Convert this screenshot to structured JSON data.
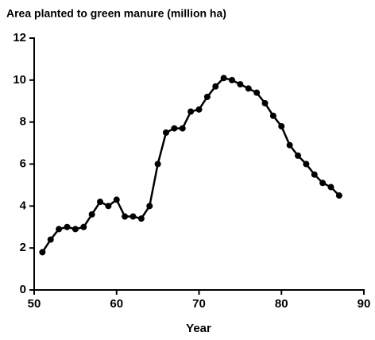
{
  "chart_data": {
    "type": "line",
    "title": "Area planted to green manure (million ha)",
    "x_label": "Year",
    "x": [
      51,
      52,
      53,
      54,
      55,
      56,
      57,
      58,
      59,
      60,
      61,
      62,
      63,
      64,
      65,
      66,
      67,
      68,
      69,
      70,
      71,
      72,
      73,
      74,
      75,
      76,
      77,
      78,
      79,
      80,
      81,
      82,
      83,
      84,
      85,
      86,
      87
    ],
    "series": [
      {
        "name": null,
        "color": "#000000",
        "values": [
          1.8,
          2.4,
          2.9,
          3.0,
          2.9,
          3.0,
          3.6,
          4.2,
          4.0,
          4.3,
          3.5,
          3.5,
          3.4,
          4.0,
          6.0,
          7.5,
          7.7,
          7.7,
          8.5,
          8.6,
          9.2,
          9.7,
          10.1,
          10.0,
          9.8,
          9.6,
          9.4,
          8.9,
          8.3,
          7.8,
          6.9,
          6.4,
          6.0,
          5.5,
          5.1,
          4.9,
          4.5
        ]
      }
    ],
    "xlim": [
      50,
      90
    ],
    "xticks": [
      50,
      60,
      70,
      80,
      90
    ],
    "ylim": [
      0,
      12
    ],
    "yticks": [
      0,
      2,
      4,
      6,
      8,
      10,
      12
    ]
  }
}
